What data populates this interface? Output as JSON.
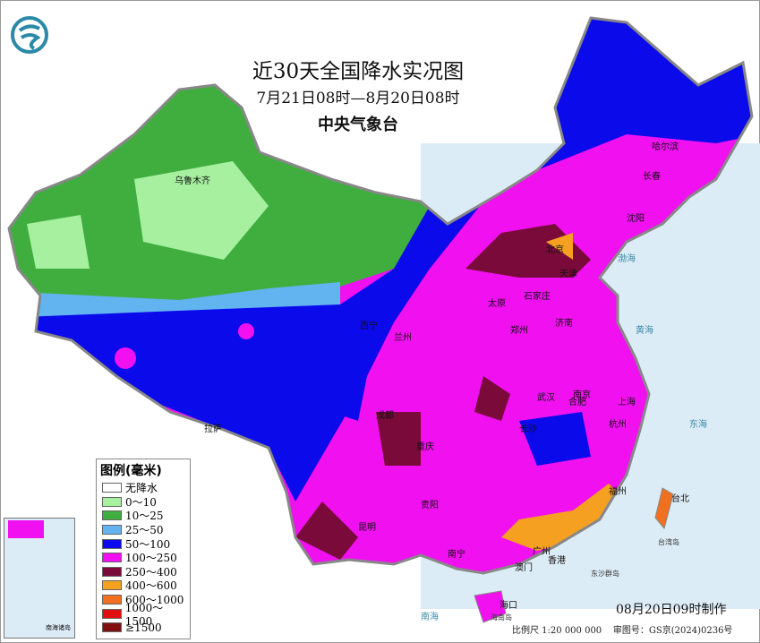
{
  "title": "近30天全国降水实况图",
  "period": "7月21日08时—8月20日08时",
  "org": "中央气象台",
  "legend": {
    "title": "图例(毫米)",
    "items": [
      {
        "label": "无降水",
        "color": "#ffffff"
      },
      {
        "label": "0～10",
        "color": "#a6f0a0"
      },
      {
        "label": "10～25",
        "color": "#3fae3f"
      },
      {
        "label": "25～50",
        "color": "#62b4f0"
      },
      {
        "label": "50～100",
        "color": "#0a0aeb"
      },
      {
        "label": "100～250",
        "color": "#f010f0"
      },
      {
        "label": "250～400",
        "color": "#7a0a3a"
      },
      {
        "label": "400～600",
        "color": "#f5a020"
      },
      {
        "label": "600～1000",
        "color": "#f07020"
      },
      {
        "label": "1000～1500",
        "color": "#e01010"
      },
      {
        "label": "≥1500",
        "color": "#801010"
      }
    ]
  },
  "cities": [
    {
      "name": "乌鲁木齐"
    },
    {
      "name": "哈尔滨"
    },
    {
      "name": "长春"
    },
    {
      "name": "沈阳"
    },
    {
      "name": "北京"
    },
    {
      "name": "天津"
    },
    {
      "name": "石家庄"
    },
    {
      "name": "太原"
    },
    {
      "name": "济南"
    },
    {
      "name": "郑州"
    },
    {
      "name": "兰州"
    },
    {
      "name": "西宁"
    },
    {
      "name": "拉萨"
    },
    {
      "name": "成都"
    },
    {
      "name": "重庆"
    },
    {
      "name": "武汉"
    },
    {
      "name": "南京"
    },
    {
      "name": "上海"
    },
    {
      "name": "杭州"
    },
    {
      "name": "合肥"
    },
    {
      "name": "长沙"
    },
    {
      "name": "福州"
    },
    {
      "name": "贵阳"
    },
    {
      "name": "昆明"
    },
    {
      "name": "南宁"
    },
    {
      "name": "广州"
    },
    {
      "name": "澳门"
    },
    {
      "name": "香港"
    },
    {
      "name": "海口"
    },
    {
      "name": "台北"
    }
  ],
  "seas": [
    {
      "name": "渤海"
    },
    {
      "name": "黄海"
    },
    {
      "name": "东海"
    },
    {
      "name": "南海"
    },
    {
      "name": "台湾岛"
    },
    {
      "name": "东沙群岛"
    },
    {
      "name": "海南岛"
    }
  ],
  "made": "08月20日09时制作",
  "scale": "比例尺 1:20 000 000",
  "approval": "审图号：GS京(2024)0236号",
  "inset_label": "南海诸岛"
}
